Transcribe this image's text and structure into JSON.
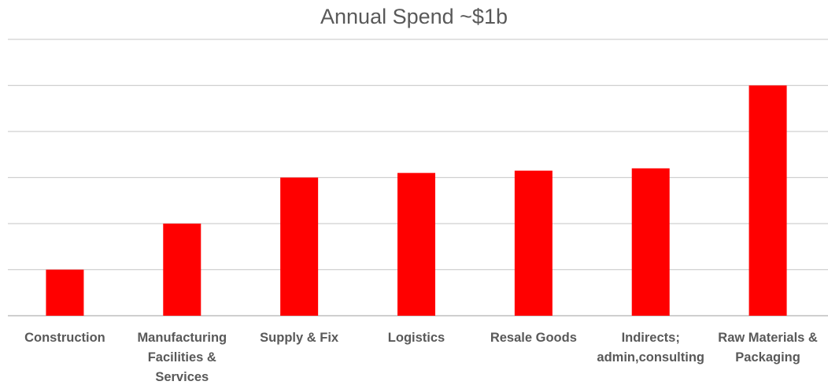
{
  "chart_data": {
    "type": "bar",
    "title": "Annual Spend ~$1b",
    "categories": [
      [
        "Construction"
      ],
      [
        "Manufacturing",
        "Facilities &",
        "Services"
      ],
      [
        "Supply & Fix"
      ],
      [
        "Logistics"
      ],
      [
        "Resale Goods"
      ],
      [
        "Indirects;",
        "admin,consulting"
      ],
      [
        "Raw Materials &",
        "Packaging"
      ]
    ],
    "values": [
      1,
      2,
      3,
      3.1,
      3.15,
      3.2,
      5
    ],
    "ylim": [
      0,
      6
    ],
    "grid": true,
    "legend": "none",
    "bar_color": "#ff0000",
    "grid_color": "#d0d0d0",
    "axis_color": "#bfbfbf",
    "label_color": "#595959"
  }
}
